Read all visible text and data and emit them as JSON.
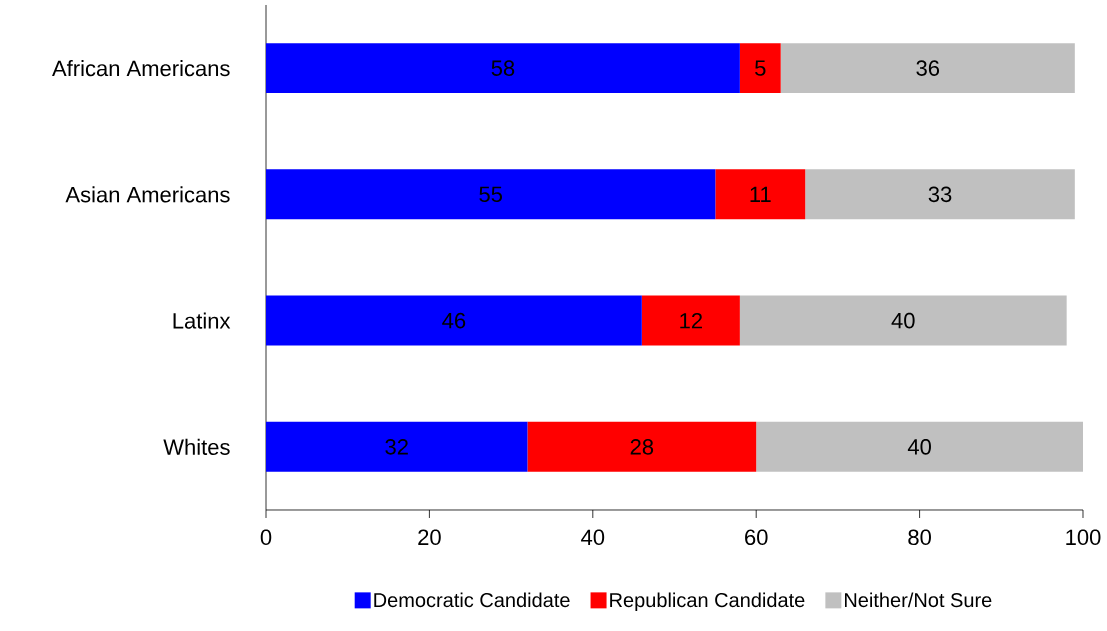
{
  "chart_data": {
    "type": "bar",
    "orientation": "horizontal",
    "stacked": true,
    "categories": [
      "African Americans",
      "Asian Americans",
      "Latinx",
      "Whites"
    ],
    "series": [
      {
        "name": "Democratic Candidate",
        "color": "#0000ff",
        "values": [
          58,
          55,
          46,
          32
        ]
      },
      {
        "name": "Republican Candidate",
        "color": "#ff0000",
        "values": [
          5,
          11,
          12,
          28
        ]
      },
      {
        "name": "Neither/Not Sure",
        "color": "#c0c0c0",
        "values": [
          36,
          33,
          40,
          40
        ]
      }
    ],
    "xlim": [
      0,
      100
    ],
    "xticks": [
      0,
      20,
      40,
      60,
      80,
      100
    ],
    "data_labels": true,
    "legend": "bottom",
    "grid": false
  }
}
